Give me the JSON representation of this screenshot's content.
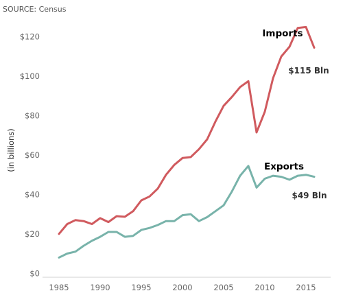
{
  "source": "SOURCE: Census",
  "chart_data": {
    "type": "line",
    "ylabel": "(in billions)",
    "xlabel": "",
    "xlim": [
      1983,
      2018
    ],
    "ylim": [
      -2,
      130
    ],
    "x_ticks": [
      1985,
      1990,
      1995,
      2000,
      2005,
      2010,
      2015
    ],
    "y_ticks": [
      {
        "value": 0,
        "label": "$0"
      },
      {
        "value": 20,
        "label": "$20"
      },
      {
        "value": 40,
        "label": "$40"
      },
      {
        "value": 60,
        "label": "$60"
      },
      {
        "value": 80,
        "label": "$80"
      },
      {
        "value": 100,
        "label": "$100"
      },
      {
        "value": 120,
        "label": "$120"
      }
    ],
    "grid": false,
    "x": [
      1985,
      1986,
      1987,
      1988,
      1989,
      1990,
      1991,
      1992,
      1993,
      1994,
      1995,
      1996,
      1997,
      1998,
      1999,
      2000,
      2001,
      2002,
      2003,
      2004,
      2005,
      2006,
      2007,
      2008,
      2009,
      2010,
      2011,
      2012,
      2013,
      2014,
      2015,
      2016
    ],
    "series": [
      {
        "name": "Imports",
        "color": "#d05a5e",
        "end_label": "$115 Bln",
        "values": [
          20,
          25,
          27,
          26.5,
          25,
          28,
          26,
          29,
          28.7,
          31.5,
          37,
          39,
          43,
          50,
          55,
          58.5,
          59,
          63,
          68,
          77,
          85,
          89.5,
          94.5,
          97.5,
          71.5,
          82,
          99,
          110,
          115,
          124.5,
          125,
          114.5
        ]
      },
      {
        "name": "Exports",
        "color": "#78b3aa",
        "end_label": "$49 Bln",
        "values": [
          8,
          10,
          11,
          14,
          16.5,
          18.5,
          21,
          21,
          18.5,
          19,
          22,
          23,
          24.5,
          26.5,
          26.5,
          29.5,
          30,
          26.5,
          28.5,
          31.5,
          34.5,
          41.5,
          49.5,
          54.5,
          43.5,
          48,
          49.5,
          49,
          47.5,
          49.5,
          50,
          49
        ]
      }
    ]
  }
}
